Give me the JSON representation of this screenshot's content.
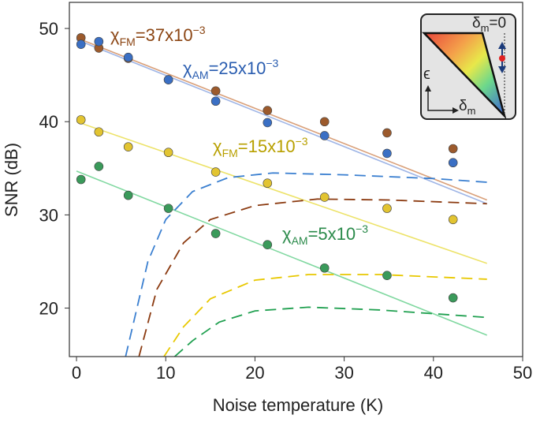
{
  "chart_data": {
    "type": "scatter",
    "xlabel": "Noise temperature (K)",
    "ylabel": "SNR (dB)",
    "xlim": [
      -0.8,
      50
    ],
    "ylim": [
      14.8,
      52.8
    ],
    "xticks": [
      0,
      10,
      20,
      30,
      40,
      50
    ],
    "yticks": [
      20,
      30,
      40,
      50
    ],
    "series": [
      {
        "color": "#9c5a2c",
        "x": [
          0.5,
          2.5,
          5.8,
          10.3,
          15.6,
          21.4,
          27.8,
          34.8,
          42.2
        ],
        "values": [
          49.0,
          47.9,
          46.8,
          44.5,
          43.3,
          41.2,
          40.0,
          38.8,
          37.1
        ]
      },
      {
        "color": "#3a6fc4",
        "x": [
          0.5,
          2.5,
          5.8,
          10.3,
          15.6,
          21.4,
          27.8,
          34.8,
          42.2
        ],
        "values": [
          48.3,
          48.6,
          46.9,
          44.5,
          42.2,
          39.9,
          38.5,
          36.6,
          35.6
        ]
      },
      {
        "color": "#e2c431",
        "x": [
          0.5,
          2.5,
          5.8,
          10.3,
          15.6,
          21.4,
          27.8,
          34.8,
          42.2
        ],
        "values": [
          40.2,
          38.9,
          37.3,
          36.7,
          34.6,
          33.4,
          31.9,
          30.7,
          29.5
        ]
      },
      {
        "color": "#3a9a5a",
        "x": [
          0.5,
          2.5,
          5.8,
          10.3,
          15.6,
          21.4,
          27.8,
          34.8,
          42.2
        ],
        "values": [
          33.8,
          35.2,
          32.1,
          30.7,
          28.0,
          26.8,
          24.3,
          23.5,
          21.1
        ]
      }
    ],
    "fits": [
      {
        "color": "#d9a07a",
        "x": [
          0,
          46
        ],
        "values": [
          49.0,
          31.6
        ]
      },
      {
        "color": "#9fb5e6",
        "x": [
          0,
          46
        ],
        "values": [
          48.8,
          31.2
        ]
      },
      {
        "color": "#ede36a",
        "x": [
          0,
          46
        ],
        "values": [
          40.0,
          24.8
        ]
      },
      {
        "color": "#80d8a0",
        "x": [
          0,
          46
        ],
        "values": [
          34.7,
          17.1
        ]
      }
    ],
    "theory": [
      {
        "color": "#3a7fd0",
        "x": [
          5.5,
          8,
          10,
          13,
          17,
          22,
          30,
          40,
          46
        ],
        "values": [
          14.8,
          25,
          29.5,
          32.5,
          34,
          34.5,
          34.3,
          33.9,
          33.5
        ]
      },
      {
        "color": "#8b3a10",
        "x": [
          7,
          9,
          12,
          15,
          20,
          27,
          35,
          46
        ],
        "values": [
          14.8,
          22,
          27,
          29.5,
          31,
          31.7,
          31.6,
          31.2
        ]
      },
      {
        "color": "#e8c800",
        "x": [
          9.8,
          12,
          15,
          20,
          26,
          34,
          46
        ],
        "values": [
          14.8,
          18,
          21,
          23,
          23.6,
          23.6,
          23.1
        ]
      },
      {
        "color": "#20a050",
        "x": [
          11,
          13,
          16,
          20,
          26,
          34,
          46
        ],
        "values": [
          14.8,
          16.5,
          18.5,
          19.7,
          20.1,
          19.8,
          19.0
        ]
      }
    ],
    "annotations": [
      {
        "color": "#8b4513",
        "symbol": "χ",
        "sub": "FM",
        "text": "=37x10",
        "sup": "−3"
      },
      {
        "color": "#2a5db0",
        "symbol": "χ",
        "sub": "AM",
        "text": "=25x10",
        "sup": "−3"
      },
      {
        "color": "#b8a000",
        "symbol": "χ",
        "sub": "FM",
        "text": "=15x10",
        "sup": "−3"
      },
      {
        "color": "#2a8a4a",
        "symbol": "χ",
        "sub": "AM",
        "text": "=5x10",
        "sup": "−3"
      }
    ],
    "inset": {
      "top": [
        "δ",
        "m",
        "=0"
      ],
      "vertical_label": "ϵ",
      "horizontal_label": [
        "δ",
        "m"
      ]
    }
  }
}
